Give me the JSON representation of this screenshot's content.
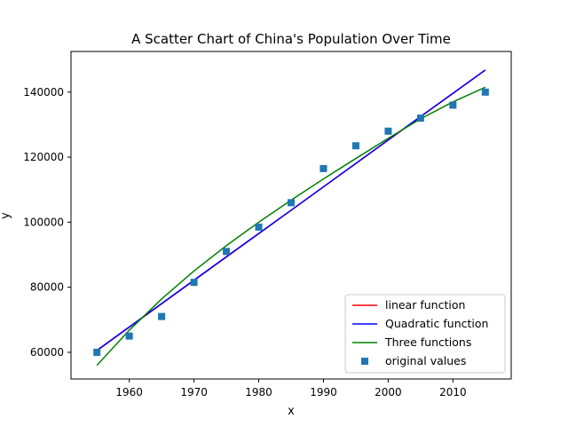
{
  "chart_data": {
    "type": "scatter",
    "title": "A Scatter Chart of China's Population Over Time",
    "xlabel": "x",
    "ylabel": "y",
    "xlim": [
      1951,
      2019
    ],
    "ylim": [
      51800,
      152500
    ],
    "grid": false,
    "legend_position": "lower-right",
    "x_ticks": [
      1960,
      1970,
      1980,
      1990,
      2000,
      2010
    ],
    "x_tick_labels": [
      "1960",
      "1970",
      "1980",
      "1990",
      "2000",
      "2010"
    ],
    "y_ticks": [
      60000,
      80000,
      100000,
      120000,
      140000
    ],
    "y_tick_labels": [
      "60000",
      "80000",
      "100000",
      "120000",
      "140000"
    ],
    "series": [
      {
        "name": "linear function",
        "kind": "line",
        "color": "#ff0000",
        "x": [
          1955,
          2015
        ],
        "y": [
          60500,
          146800
        ]
      },
      {
        "name": "Quadratic function",
        "kind": "line",
        "color": "#0000ff",
        "x": [
          1955,
          1965,
          1975,
          1985,
          1995,
          2005,
          2015
        ],
        "y": [
          60600,
          75000,
          89400,
          103700,
          118100,
          132500,
          146800
        ]
      },
      {
        "name": "Three functions",
        "kind": "line",
        "color": "#008000",
        "x": [
          1955,
          1960,
          1965,
          1970,
          1975,
          1980,
          1985,
          1990,
          1995,
          2000,
          2005,
          2010,
          2015
        ],
        "y": [
          56000,
          66800,
          76400,
          85000,
          92800,
          100000,
          106800,
          113300,
          119600,
          125800,
          131800,
          137000,
          141500
        ]
      },
      {
        "name": "original values",
        "kind": "scatter",
        "color": "#1f77b4",
        "x": [
          1955,
          1960,
          1965,
          1970,
          1975,
          1980,
          1985,
          1990,
          1995,
          2000,
          2005,
          2010,
          2015
        ],
        "y": [
          60000,
          65000,
          71000,
          81500,
          91000,
          98500,
          106000,
          116500,
          123500,
          128000,
          132000,
          136000,
          140000
        ]
      }
    ]
  }
}
